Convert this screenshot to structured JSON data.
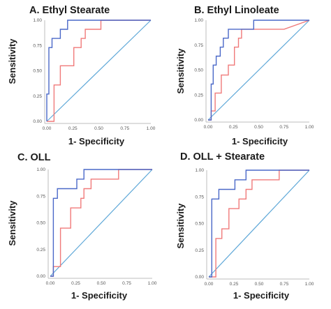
{
  "chart_data": [
    {
      "type": "line",
      "title": "A. Ethyl Stearate",
      "xlabel": "1- Specificity",
      "ylabel": "Sensitivity",
      "xlim": [
        0,
        1
      ],
      "ylim": [
        0,
        1
      ],
      "xticks": [
        "0.00",
        "0.25",
        "0.50",
        "0.75",
        "1.00"
      ],
      "yticks": [
        "0.00",
        "0.25",
        "0.50",
        "0.75",
        "1.00"
      ],
      "grid": false,
      "series": [
        {
          "color": "#4a68c8",
          "x": [
            0,
            0,
            0.02,
            0.02,
            0.05,
            0.05,
            0.13,
            0.13,
            0.2,
            0.2,
            0.3,
            0.3,
            1
          ],
          "y": [
            0,
            0.27,
            0.27,
            0.73,
            0.73,
            0.82,
            0.82,
            0.91,
            0.91,
            1,
            1,
            1,
            1
          ]
        },
        {
          "color": "#f07a7a",
          "x": [
            0,
            0.07,
            0.07,
            0.13,
            0.13,
            0.26,
            0.26,
            0.33,
            0.33,
            0.37,
            0.37,
            0.52,
            0.52,
            1
          ],
          "y": [
            0,
            0,
            0.36,
            0.36,
            0.55,
            0.55,
            0.73,
            0.73,
            0.82,
            0.82,
            0.91,
            0.91,
            1,
            1
          ]
        },
        {
          "color": "#5fa8d8",
          "x": [
            0,
            1
          ],
          "y": [
            0,
            1
          ]
        }
      ]
    },
    {
      "type": "line",
      "title": "B. Ethyl Linoleate",
      "xlabel": "1- Specificity",
      "ylabel": "Sensitivity",
      "xlim": [
        0,
        1
      ],
      "ylim": [
        0,
        1
      ],
      "xticks": [
        "0.00",
        "0.25",
        "0.50",
        "0.75",
        "1.00"
      ],
      "yticks": [
        "0.00",
        "0.25",
        "0.50",
        "0.75",
        "1.00"
      ],
      "grid": false,
      "series": [
        {
          "color": "#4a68c8",
          "x": [
            0,
            0.03,
            0.03,
            0.05,
            0.05,
            0.08,
            0.08,
            0.12,
            0.12,
            0.15,
            0.15,
            0.2,
            0.2,
            0.26,
            0.26,
            0.45,
            0.45,
            1
          ],
          "y": [
            0,
            0,
            0.36,
            0.36,
            0.55,
            0.55,
            0.64,
            0.64,
            0.73,
            0.73,
            0.82,
            0.82,
            0.91,
            0.91,
            0.91,
            0.91,
            1,
            1
          ]
        },
        {
          "color": "#f07a7a",
          "x": [
            0,
            0.03,
            0.03,
            0.07,
            0.07,
            0.13,
            0.13,
            0.2,
            0.2,
            0.26,
            0.26,
            0.3,
            0.3,
            0.33,
            0.33,
            0.75,
            1
          ],
          "y": [
            0,
            0,
            0.09,
            0.09,
            0.27,
            0.27,
            0.45,
            0.45,
            0.55,
            0.55,
            0.73,
            0.73,
            0.82,
            0.82,
            0.91,
            0.91,
            1
          ]
        },
        {
          "color": "#5fa8d8",
          "x": [
            0,
            1
          ],
          "y": [
            0,
            1
          ]
        }
      ]
    },
    {
      "type": "line",
      "title": "C. OLL",
      "xlabel": "1- Specificity",
      "ylabel": "Sensitivity",
      "xlim": [
        0,
        1
      ],
      "ylim": [
        0,
        1
      ],
      "xticks": [
        "0.00",
        "0.25",
        "0.50",
        "0.75",
        "1.00"
      ],
      "yticks": [
        "0.00",
        "0.25",
        "0.50",
        "0.75",
        "1.00"
      ],
      "grid": false,
      "series": [
        {
          "color": "#4a68c8",
          "x": [
            0,
            0.03,
            0.03,
            0.07,
            0.07,
            0.26,
            0.26,
            0.33,
            0.33,
            0.67,
            0.67,
            1
          ],
          "y": [
            0,
            0,
            0.73,
            0.73,
            0.82,
            0.82,
            0.91,
            0.91,
            1,
            1,
            1,
            1
          ]
        },
        {
          "color": "#f07a7a",
          "x": [
            0,
            0.03,
            0.03,
            0.1,
            0.1,
            0.2,
            0.2,
            0.3,
            0.3,
            0.33,
            0.33,
            0.4,
            0.4,
            0.67,
            0.67,
            1
          ],
          "y": [
            0,
            0,
            0.09,
            0.09,
            0.45,
            0.45,
            0.64,
            0.64,
            0.73,
            0.73,
            0.82,
            0.82,
            0.91,
            0.91,
            1,
            1
          ]
        },
        {
          "color": "#5fa8d8",
          "x": [
            0,
            1
          ],
          "y": [
            0,
            1
          ]
        }
      ]
    },
    {
      "type": "line",
      "title": "D. OLL + Stearate",
      "xlabel": "1- Specificity",
      "ylabel": "Sensitivity",
      "xlim": [
        0,
        1
      ],
      "ylim": [
        0,
        1
      ],
      "xticks": [
        "0.00",
        "0.25",
        "0.50",
        "0.75",
        "1.00"
      ],
      "yticks": [
        "0.00",
        "0.25",
        "0.50",
        "0.75",
        "1.00"
      ],
      "grid": false,
      "series": [
        {
          "color": "#4a68c8",
          "x": [
            0,
            0.03,
            0.03,
            0.1,
            0.1,
            0.26,
            0.26,
            0.37,
            0.37,
            0.7,
            1
          ],
          "y": [
            0,
            0,
            0.73,
            0.73,
            0.82,
            0.82,
            0.91,
            0.91,
            1,
            1,
            1
          ]
        },
        {
          "color": "#f07a7a",
          "x": [
            0,
            0.07,
            0.07,
            0.13,
            0.13,
            0.2,
            0.2,
            0.3,
            0.3,
            0.37,
            0.37,
            0.43,
            0.43,
            0.7,
            0.7,
            1
          ],
          "y": [
            0,
            0,
            0.36,
            0.36,
            0.45,
            0.45,
            0.64,
            0.64,
            0.73,
            0.73,
            0.82,
            0.82,
            0.91,
            0.91,
            1,
            1
          ]
        },
        {
          "color": "#5fa8d8",
          "x": [
            0,
            1
          ],
          "y": [
            0,
            1
          ]
        }
      ]
    }
  ]
}
